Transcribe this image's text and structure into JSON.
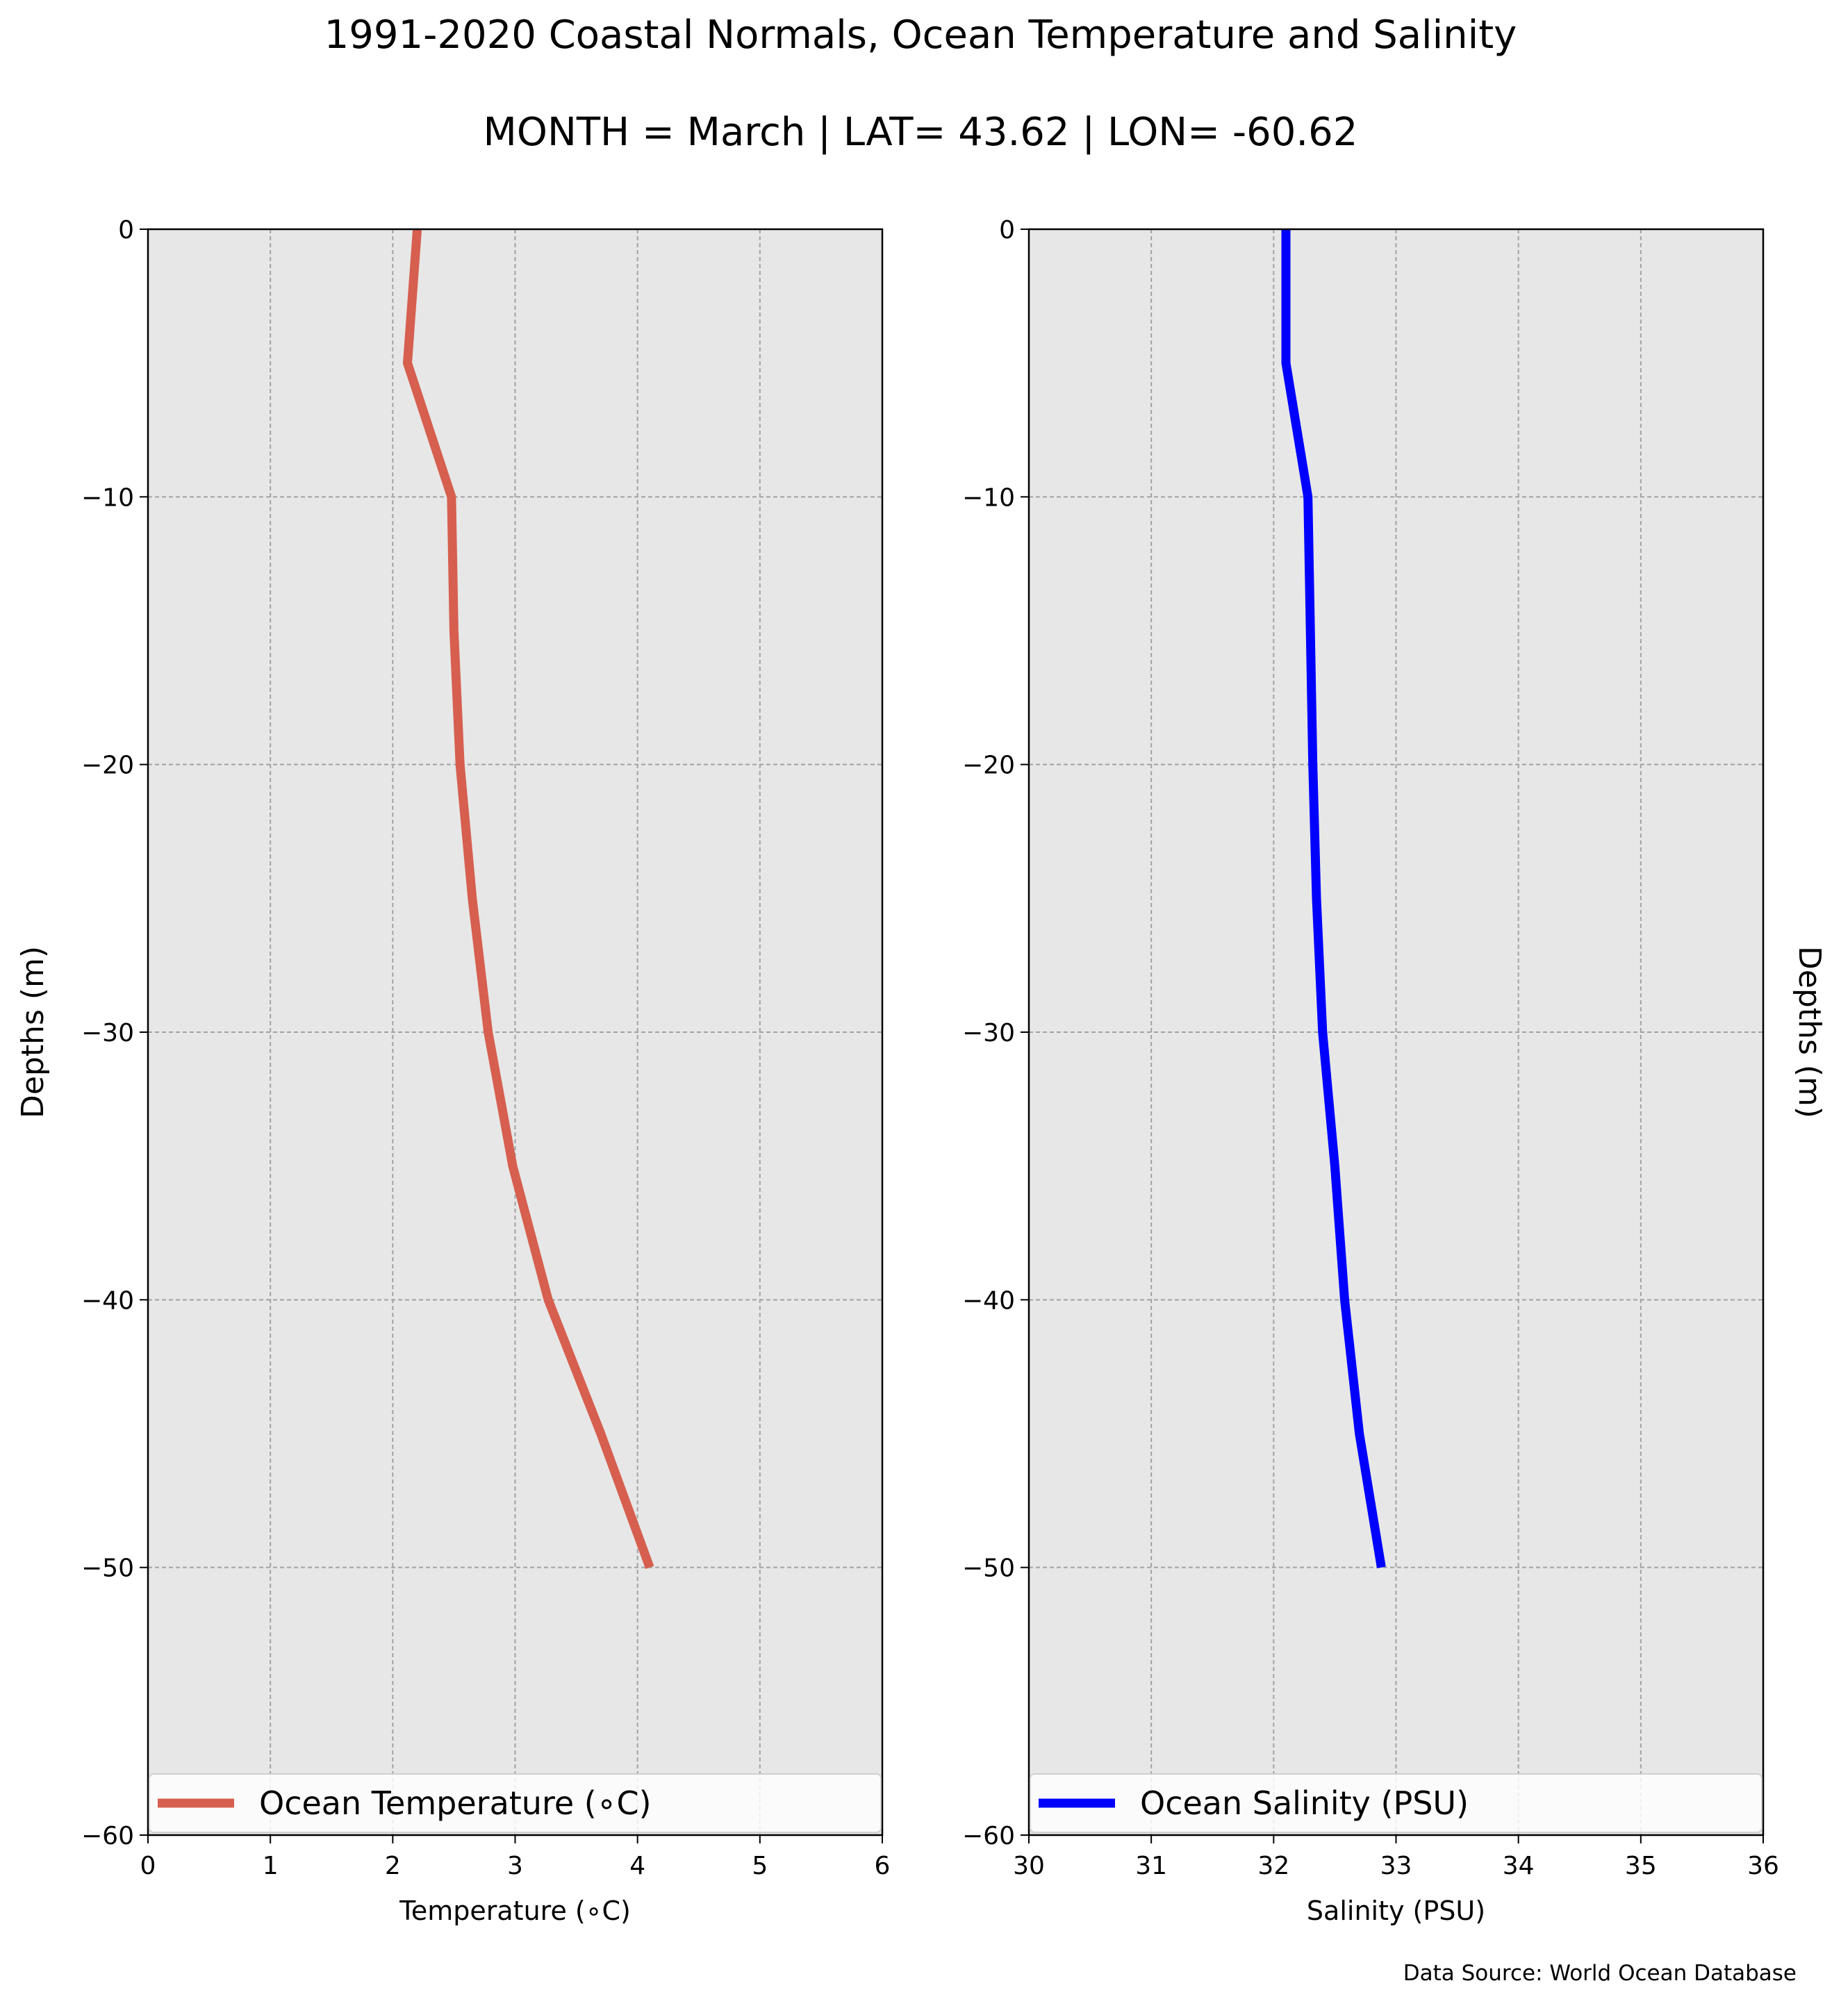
{
  "title": "1991-2020 Coastal Normals, Ocean Temperature and Salinity",
  "subtitle": "MONTH = March | LAT= 43.62 | LON= -60.62",
  "source": "Data Source: World Ocean Database",
  "chart_data": [
    {
      "type": "line",
      "xlabel": "Temperature (∘C)",
      "ylabel": "Depths (m)",
      "xlim": [
        0,
        6
      ],
      "ylim": [
        -60,
        0
      ],
      "xticks": [
        "0",
        "1",
        "2",
        "3",
        "4",
        "5",
        "6"
      ],
      "yticks": [
        "0",
        "−10",
        "−20",
        "−30",
        "−40",
        "−50",
        "−60"
      ],
      "grid": true,
      "legend": "bottom",
      "series": [
        {
          "name": "Ocean Temperature (∘C)",
          "color": "#d65f4f",
          "x": [
            2.2,
            2.12,
            2.48,
            2.5,
            2.55,
            2.65,
            2.78,
            2.98,
            3.27,
            3.7,
            4.1
          ],
          "y": [
            0,
            -5,
            -10,
            -15,
            -20,
            -25,
            -30,
            -35,
            -40,
            -45,
            -50
          ]
        }
      ]
    },
    {
      "type": "line",
      "xlabel": "Salinity (PSU)",
      "ylabel": "Depths (m)",
      "xlim": [
        30,
        36
      ],
      "ylim": [
        -60,
        0
      ],
      "xticks": [
        "30",
        "31",
        "32",
        "33",
        "34",
        "35",
        "36"
      ],
      "yticks": [
        "0",
        "−10",
        "−20",
        "−30",
        "−40",
        "−50",
        "−60"
      ],
      "grid": true,
      "legend": "bottom",
      "series": [
        {
          "name": "Ocean Salinity (PSU)",
          "color": "#0000ff",
          "x": [
            32.1,
            32.1,
            32.28,
            32.3,
            32.32,
            32.35,
            32.4,
            32.5,
            32.58,
            32.7,
            32.88
          ],
          "y": [
            0,
            -5,
            -10,
            -15,
            -20,
            -25,
            -30,
            -35,
            -40,
            -45,
            -50
          ]
        }
      ]
    }
  ]
}
